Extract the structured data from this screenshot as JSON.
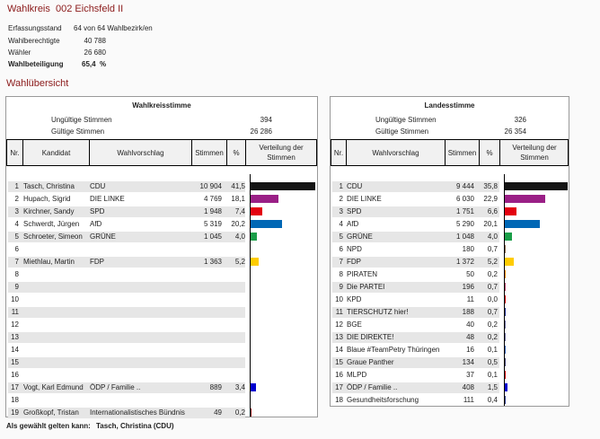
{
  "header": {
    "label": "Wahlkreis",
    "name": "002 Eichsfeld II",
    "erfassung_label": "Erfassungsstand",
    "erfassung_value": "64 von 64 Wahlbezirk/en",
    "berechtigte_label": "Wahlberechtigte",
    "berechtigte_value": "40 788",
    "waehler_label": "Wähler",
    "waehler_value": "26 680",
    "beteiligung_label": "Wahlbeteiligung",
    "beteiligung_value": "65,4  %"
  },
  "overview_title": "Wahlübersicht",
  "wks": {
    "title": "Wahlkreisstimme",
    "ungueltig_label": "Ungültige Stimmen",
    "ungueltig": "394",
    "gueltig_label": "Gültige Stimmen",
    "gueltig": "26 286",
    "cols": [
      "Nr.",
      "Kandidat",
      "Wahlvorschlag",
      "Stimmen",
      "%",
      "Verteilung der Stimmen"
    ],
    "rows": [
      {
        "nr": "1",
        "kandidat": "Tasch, Christina",
        "partei": "CDU",
        "stimmen": "10 904",
        "pct": "41,5",
        "p": 41.5,
        "color": "#141414"
      },
      {
        "nr": "2",
        "kandidat": "Hupach, Sigrid",
        "partei": "DIE LINKE",
        "stimmen": "4 769",
        "pct": "18,1",
        "p": 18.1,
        "color": "#9a1f86"
      },
      {
        "nr": "3",
        "kandidat": "Kirchner, Sandy",
        "partei": "SPD",
        "stimmen": "1 948",
        "pct": "7,4",
        "p": 7.4,
        "color": "#e3000f"
      },
      {
        "nr": "4",
        "kandidat": "Schwerdt, Jürgen",
        "partei": "AfD",
        "stimmen": "5 319",
        "pct": "20,2",
        "p": 20.2,
        "color": "#0067b5"
      },
      {
        "nr": "5",
        "kandidat": "Schroeter, Simeon",
        "partei": "GRÜNE",
        "stimmen": "1 045",
        "pct": "4,0",
        "p": 4.0,
        "color": "#1a9e48"
      },
      {
        "nr": "6",
        "kandidat": "",
        "partei": "",
        "stimmen": "",
        "pct": "",
        "p": 0,
        "color": ""
      },
      {
        "nr": "7",
        "kandidat": "Miethlau, Martin",
        "partei": "FDP",
        "stimmen": "1 363",
        "pct": "5,2",
        "p": 5.2,
        "color": "#ffcc00"
      },
      {
        "nr": "8",
        "kandidat": "",
        "partei": "",
        "stimmen": "",
        "pct": "",
        "p": 0,
        "color": ""
      },
      {
        "nr": "9",
        "kandidat": "",
        "partei": "",
        "stimmen": "",
        "pct": "",
        "p": 0,
        "color": ""
      },
      {
        "nr": "10",
        "kandidat": "",
        "partei": "",
        "stimmen": "",
        "pct": "",
        "p": 0,
        "color": ""
      },
      {
        "nr": "11",
        "kandidat": "",
        "partei": "",
        "stimmen": "",
        "pct": "",
        "p": 0,
        "color": ""
      },
      {
        "nr": "12",
        "kandidat": "",
        "partei": "",
        "stimmen": "",
        "pct": "",
        "p": 0,
        "color": ""
      },
      {
        "nr": "13",
        "kandidat": "",
        "partei": "",
        "stimmen": "",
        "pct": "",
        "p": 0,
        "color": ""
      },
      {
        "nr": "14",
        "kandidat": "",
        "partei": "",
        "stimmen": "",
        "pct": "",
        "p": 0,
        "color": ""
      },
      {
        "nr": "15",
        "kandidat": "",
        "partei": "",
        "stimmen": "",
        "pct": "",
        "p": 0,
        "color": ""
      },
      {
        "nr": "16",
        "kandidat": "",
        "partei": "",
        "stimmen": "",
        "pct": "",
        "p": 0,
        "color": ""
      },
      {
        "nr": "17",
        "kandidat": "Vogt, Karl Edmund",
        "partei": "ÖDP / Familie ..",
        "stimmen": "889",
        "pct": "3,4",
        "p": 3.4,
        "color": "#0000d0"
      },
      {
        "nr": "18",
        "kandidat": "",
        "partei": "",
        "stimmen": "",
        "pct": "",
        "p": 0,
        "color": ""
      },
      {
        "nr": "19",
        "kandidat": "Großkopf, Tristan",
        "partei": "Internationalistisches Bündnis",
        "stimmen": "49",
        "pct": "0,2",
        "p": 0.2,
        "color": "#8b0000"
      }
    ]
  },
  "ls": {
    "title": "Landesstimme",
    "ungueltig_label": "Ungültige Stimmen",
    "ungueltig": "326",
    "gueltig_label": "Gültige Stimmen",
    "gueltig": "26 354",
    "cols": [
      "Nr.",
      "Wahlvorschlag",
      "Stimmen",
      "%",
      "Verteilung der Stimmen"
    ],
    "rows": [
      {
        "nr": "1",
        "partei": "CDU",
        "stimmen": "9 444",
        "pct": "35,8",
        "p": 35.8,
        "color": "#141414"
      },
      {
        "nr": "2",
        "partei": "DIE LINKE",
        "stimmen": "6 030",
        "pct": "22,9",
        "p": 22.9,
        "color": "#9a1f86"
      },
      {
        "nr": "3",
        "partei": "SPD",
        "stimmen": "1 751",
        "pct": "6,6",
        "p": 6.6,
        "color": "#e3000f"
      },
      {
        "nr": "4",
        "partei": "AfD",
        "stimmen": "5 290",
        "pct": "20,1",
        "p": 20.1,
        "color": "#0067b5"
      },
      {
        "nr": "5",
        "partei": "GRÜNE",
        "stimmen": "1 048",
        "pct": "4,0",
        "p": 4.0,
        "color": "#1a9e48"
      },
      {
        "nr": "6",
        "partei": "NPD",
        "stimmen": "180",
        "pct": "0,7",
        "p": 0.7,
        "color": "#8a6a4a"
      },
      {
        "nr": "7",
        "partei": "FDP",
        "stimmen": "1 372",
        "pct": "5,2",
        "p": 5.2,
        "color": "#ffcc00"
      },
      {
        "nr": "8",
        "partei": "PIRATEN",
        "stimmen": "50",
        "pct": "0,2",
        "p": 0.2,
        "color": "#ff8800"
      },
      {
        "nr": "9",
        "partei": "Die PARTEI",
        "stimmen": "196",
        "pct": "0,7",
        "p": 0.7,
        "color": "#b5406a"
      },
      {
        "nr": "10",
        "partei": "KPD",
        "stimmen": "11",
        "pct": "0,0",
        "p": 0.0,
        "color": "#cc0000"
      },
      {
        "nr": "11",
        "partei": "TIERSCHUTZ hier!",
        "stimmen": "188",
        "pct": "0,7",
        "p": 0.7,
        "color": "#1a2a8a"
      },
      {
        "nr": "12",
        "partei": "BGE",
        "stimmen": "40",
        "pct": "0,2",
        "p": 0.2,
        "color": "#6a6a9a"
      },
      {
        "nr": "13",
        "partei": "DIE DIREKTE!",
        "stimmen": "48",
        "pct": "0,2",
        "p": 0.2,
        "color": "#6a6a9a"
      },
      {
        "nr": "14",
        "partei": "Blaue #TeamPetry Thüringen",
        "stimmen": "16",
        "pct": "0,1",
        "p": 0.1,
        "color": "#3060b0"
      },
      {
        "nr": "15",
        "partei": "Graue Panther",
        "stimmen": "134",
        "pct": "0,5",
        "p": 0.5,
        "color": "#404070"
      },
      {
        "nr": "16",
        "partei": "MLPD",
        "stimmen": "37",
        "pct": "0,1",
        "p": 0.1,
        "color": "#cc0000"
      },
      {
        "nr": "17",
        "partei": "ÖDP / Familie ..",
        "stimmen": "408",
        "pct": "1,5",
        "p": 1.5,
        "color": "#0000d0"
      },
      {
        "nr": "18",
        "partei": "Gesundheitsforschung",
        "stimmen": "111",
        "pct": "0,4",
        "p": 0.4,
        "color": "#2a3a8a"
      }
    ]
  },
  "footer": {
    "label": "Als gewählt gelten kann:",
    "value": "Tasch, Christina (CDU)"
  }
}
